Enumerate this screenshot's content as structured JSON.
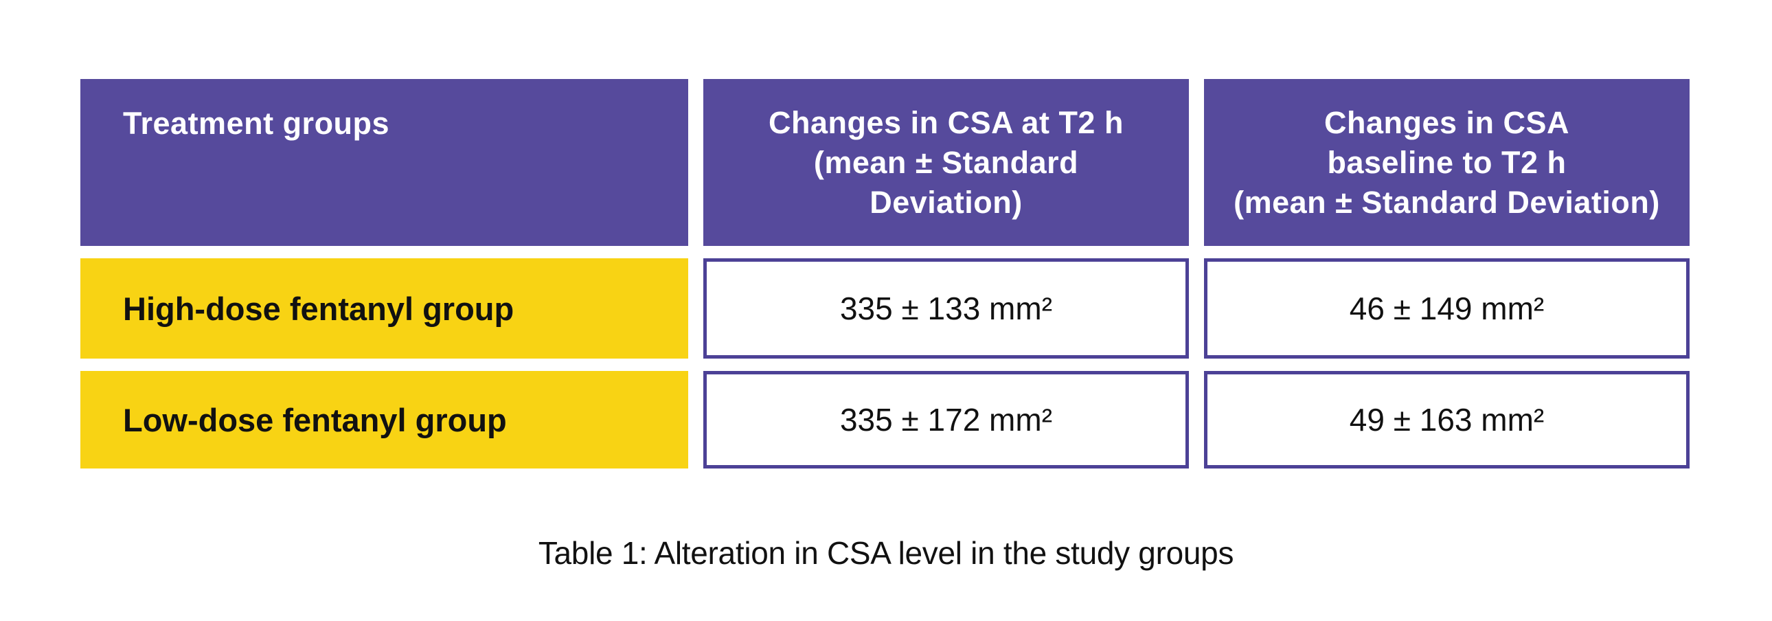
{
  "table": {
    "headers": [
      "Treatment groups",
      "Changes in CSA at T2 h\n(mean ± Standard\nDeviation)",
      "Changes in CSA\nbaseline to T2 h\n(mean ± Standard Deviation)"
    ],
    "rows": [
      {
        "label": "High-dose fentanyl group",
        "values": [
          "335 ± 133 mm²",
          "46 ± 149 mm²"
        ]
      },
      {
        "label": "Low-dose fentanyl group",
        "values": [
          "335 ± 172 mm²",
          "49 ± 163 mm²"
        ]
      }
    ]
  },
  "caption": "Table 1: Alteration in CSA level in the study groups",
  "theme": {
    "page-bg": "#ffffff",
    "header-bg": "#564a9c",
    "header-text": "#ffffff",
    "label-bg": "#f8d314",
    "label-text": "#111111",
    "value-border": "#4c4196",
    "value-text": "#111111",
    "caption-text": "#111111"
  }
}
